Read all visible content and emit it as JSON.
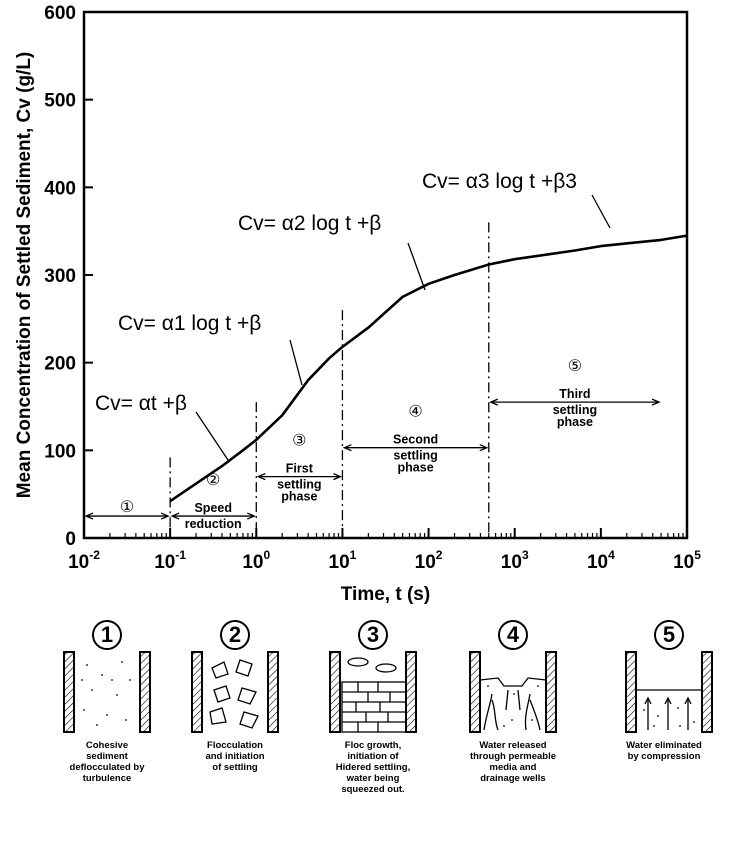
{
  "chart_data": {
    "type": "line",
    "xlabel": "Time, t (s)",
    "ylabel": "Mean Concentration of Settled Sediment, Cv (g/L)",
    "xscale": "log",
    "xlim": [
      0.01,
      100000
    ],
    "ylim": [
      0,
      600
    ],
    "x_ticks": [
      {
        "base": "10",
        "exp": "-2"
      },
      {
        "base": "10",
        "exp": "-1"
      },
      {
        "base": "10",
        "exp": "0"
      },
      {
        "base": "10",
        "exp": "1"
      },
      {
        "base": "10",
        "exp": "2"
      },
      {
        "base": "10",
        "exp": "3"
      },
      {
        "base": "10",
        "exp": "4"
      },
      {
        "base": "10",
        "exp": "5"
      }
    ],
    "y_ticks": [
      "0",
      "100",
      "200",
      "300",
      "400",
      "500",
      "600"
    ],
    "series": [
      {
        "x": [
          0.1,
          0.2,
          0.4,
          0.7,
          1,
          2,
          4,
          7,
          10,
          20,
          50,
          100,
          200,
          500,
          1000,
          5000,
          10000,
          50000,
          100000
        ],
        "y": [
          42,
          62,
          82,
          100,
          112,
          140,
          180,
          205,
          218,
          240,
          275,
          290,
          300,
          312,
          318,
          328,
          333,
          340,
          345
        ]
      }
    ],
    "equations": [
      {
        "text": "Cv= αt +β",
        "x": 0.1,
        "y": 150
      },
      {
        "text": "Cv= α1 log t +β",
        "x": 1,
        "y": 235
      },
      {
        "text": "Cv= α2 log t +β",
        "x": 10,
        "y": 350
      },
      {
        "text": "Cv= α3 log t +β3",
        "x": 1000,
        "y": 400
      }
    ],
    "phase_boundaries": [
      0.1,
      1,
      10,
      500
    ],
    "phases": [
      {
        "num": "①",
        "lines": [],
        "x_from": 0.01,
        "x_to": 0.1,
        "y": 25
      },
      {
        "num": "②",
        "lines": [
          "Speed",
          "reduction"
        ],
        "x_from": 0.1,
        "x_to": 1,
        "y": 25
      },
      {
        "num": "③",
        "lines": [
          "First",
          "settling",
          "phase"
        ],
        "x_from": 1,
        "x_to": 10,
        "y": 70
      },
      {
        "num": "④",
        "lines": [
          "Second",
          "settling",
          "phase"
        ],
        "x_from": 10,
        "x_to": 500,
        "y": 103
      },
      {
        "num": "⑤",
        "lines": [
          "Third",
          "settling",
          "phase"
        ],
        "x_from": 500,
        "x_to": 50000,
        "y": 155
      }
    ]
  },
  "diagrams": [
    {
      "num": "1",
      "caption": [
        "Cohesive",
        "sediment",
        "deflocculated by",
        "turbulence"
      ]
    },
    {
      "num": "2",
      "caption": [
        "Flocculation",
        "and initiation",
        "of settling"
      ]
    },
    {
      "num": "3",
      "caption": [
        "Floc growth,",
        "initiation of",
        "Hidered settling,",
        "water being",
        "squeezed out."
      ]
    },
    {
      "num": "4",
      "caption": [
        "Water released",
        "through permeable",
        "media and",
        "drainage wells"
      ]
    },
    {
      "num": "5",
      "caption": [
        "Water eliminated",
        "by compression"
      ]
    }
  ]
}
